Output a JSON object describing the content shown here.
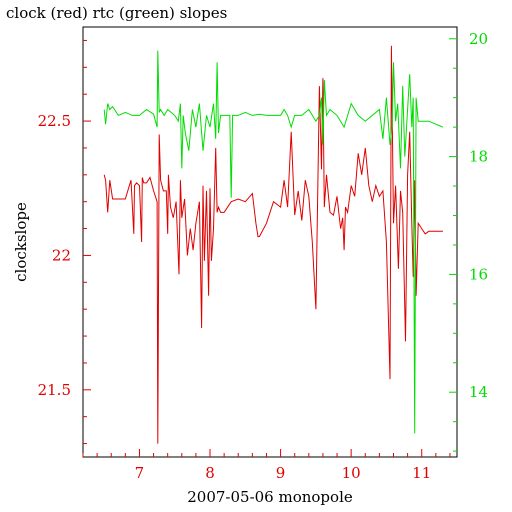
{
  "chart_data": {
    "type": "line",
    "title": "clock (red) rtc (green) slopes",
    "xlabel": "2007-05-06 monopole",
    "ylabel": "clockslope",
    "y2label": "",
    "xlim": [
      6.2,
      11.5
    ],
    "ylim": [
      21.25,
      22.85
    ],
    "y2lim": [
      12.9,
      20.2
    ],
    "x_ticks": [
      "7",
      "8",
      "9",
      "10",
      "11"
    ],
    "y_ticks": [
      "21.5",
      "22",
      "22.5"
    ],
    "y2_ticks": [
      "14",
      "16",
      "18",
      "20"
    ],
    "grid": false,
    "legend": "none",
    "series": [
      {
        "color": "#e00000",
        "axis": "left",
        "x": [
          6.5,
          6.52,
          6.55,
          6.58,
          6.62,
          6.68,
          6.72,
          6.8,
          6.88,
          6.92,
          6.93,
          6.96,
          7.0,
          7.03,
          7.04,
          7.06,
          7.1,
          7.15,
          7.2,
          7.25,
          7.26,
          7.28,
          7.3,
          7.34,
          7.38,
          7.4,
          7.41,
          7.44,
          7.48,
          7.52,
          7.56,
          7.58,
          7.6,
          7.64,
          7.68,
          7.72,
          7.76,
          7.8,
          7.85,
          7.88,
          7.9,
          7.92,
          7.95,
          7.98,
          8.0,
          8.02,
          8.05,
          8.08,
          8.1,
          8.12,
          8.15,
          8.2,
          8.3,
          8.4,
          8.5,
          8.6,
          8.65,
          8.68,
          8.7,
          8.8,
          8.9,
          9.0,
          9.05,
          9.1,
          9.15,
          9.2,
          9.25,
          9.3,
          9.35,
          9.4,
          9.45,
          9.5,
          9.55,
          9.58,
          9.6,
          9.62,
          9.65,
          9.7,
          9.75,
          9.8,
          9.85,
          9.88,
          9.9,
          9.92,
          9.95,
          10.0,
          10.05,
          10.1,
          10.15,
          10.2,
          10.25,
          10.3,
          10.35,
          10.4,
          10.45,
          10.5,
          10.55,
          10.57,
          10.6,
          10.63,
          10.67,
          10.7,
          10.73,
          10.77,
          10.8,
          10.83,
          10.86,
          10.88,
          10.9,
          10.92,
          10.95,
          11.0,
          11.05,
          11.1,
          11.2,
          11.3
        ],
        "values": [
          22.3,
          22.28,
          22.16,
          22.28,
          22.21,
          22.21,
          22.21,
          22.21,
          22.28,
          22.08,
          22.26,
          22.27,
          22.26,
          22.05,
          22.29,
          22.27,
          22.27,
          22.29,
          22.24,
          22.2,
          21.3,
          22.45,
          22.28,
          22.24,
          22.24,
          22.08,
          22.3,
          22.18,
          22.14,
          22.2,
          21.93,
          22.28,
          22.14,
          22.21,
          22.0,
          22.1,
          22.02,
          22.12,
          22.2,
          21.73,
          22.26,
          21.98,
          22.24,
          21.85,
          22.25,
          21.98,
          22.1,
          22.4,
          22.16,
          22.18,
          22.16,
          22.16,
          22.2,
          22.21,
          22.2,
          22.23,
          22.12,
          22.07,
          22.07,
          22.12,
          22.2,
          22.18,
          22.28,
          22.18,
          22.46,
          22.15,
          22.24,
          22.13,
          22.28,
          22.22,
          22.05,
          21.8,
          22.63,
          22.32,
          22.66,
          22.18,
          22.3,
          22.16,
          22.15,
          22.22,
          22.1,
          22.14,
          22.02,
          22.18,
          22.16,
          22.26,
          22.22,
          22.38,
          22.3,
          22.4,
          22.26,
          22.2,
          22.26,
          22.22,
          22.24,
          22.05,
          21.54,
          22.78,
          22.12,
          22.26,
          21.95,
          22.24,
          22.16,
          21.68,
          22.3,
          22.46,
          22.12,
          21.92,
          22.28,
          21.85,
          22.12,
          22.1,
          22.08,
          22.09,
          22.09,
          22.09
        ]
      },
      {
        "color": "#00dd00",
        "axis": "right",
        "x": [
          6.5,
          6.52,
          6.55,
          6.58,
          6.62,
          6.7,
          6.8,
          6.9,
          7.0,
          7.1,
          7.2,
          7.25,
          7.26,
          7.28,
          7.3,
          7.35,
          7.4,
          7.45,
          7.5,
          7.55,
          7.58,
          7.6,
          7.62,
          7.65,
          7.7,
          7.75,
          7.8,
          7.85,
          7.9,
          7.95,
          8.0,
          8.05,
          8.08,
          8.1,
          8.12,
          8.15,
          8.2,
          8.28,
          8.3,
          8.32,
          8.4,
          8.5,
          8.6,
          8.7,
          8.8,
          8.9,
          9.0,
          9.05,
          9.1,
          9.15,
          9.2,
          9.3,
          9.4,
          9.5,
          9.55,
          9.58,
          9.6,
          9.62,
          9.65,
          9.7,
          9.8,
          9.9,
          10.0,
          10.1,
          10.2,
          10.3,
          10.4,
          10.45,
          10.5,
          10.55,
          10.58,
          10.6,
          10.63,
          10.66,
          10.7,
          10.73,
          10.76,
          10.8,
          10.83,
          10.86,
          10.88,
          10.9,
          10.92,
          10.95,
          11.0,
          11.1,
          11.2,
          11.3
        ],
        "values": [
          18.8,
          18.55,
          18.9,
          18.8,
          18.85,
          18.7,
          18.75,
          18.7,
          18.7,
          18.8,
          18.72,
          18.5,
          19.8,
          18.75,
          18.8,
          18.7,
          18.8,
          18.75,
          18.7,
          18.6,
          18.9,
          17.8,
          18.7,
          18.4,
          18.1,
          18.8,
          18.5,
          18.9,
          18.1,
          18.7,
          18.5,
          18.9,
          18.3,
          19.6,
          18.4,
          18.7,
          18.7,
          18.7,
          17.3,
          18.7,
          18.7,
          18.75,
          18.7,
          18.72,
          18.7,
          18.7,
          18.7,
          18.8,
          18.7,
          18.5,
          18.7,
          18.7,
          18.8,
          18.6,
          18.7,
          19.0,
          18.2,
          19.3,
          18.7,
          18.8,
          18.7,
          18.5,
          18.9,
          18.7,
          18.6,
          18.7,
          18.8,
          18.3,
          19.0,
          18.2,
          18.5,
          19.6,
          18.6,
          18.9,
          17.8,
          19.2,
          18.0,
          18.8,
          19.4,
          18.5,
          19.0,
          13.3,
          19.0,
          18.6,
          18.6,
          18.6,
          18.55,
          18.5
        ]
      }
    ]
  }
}
